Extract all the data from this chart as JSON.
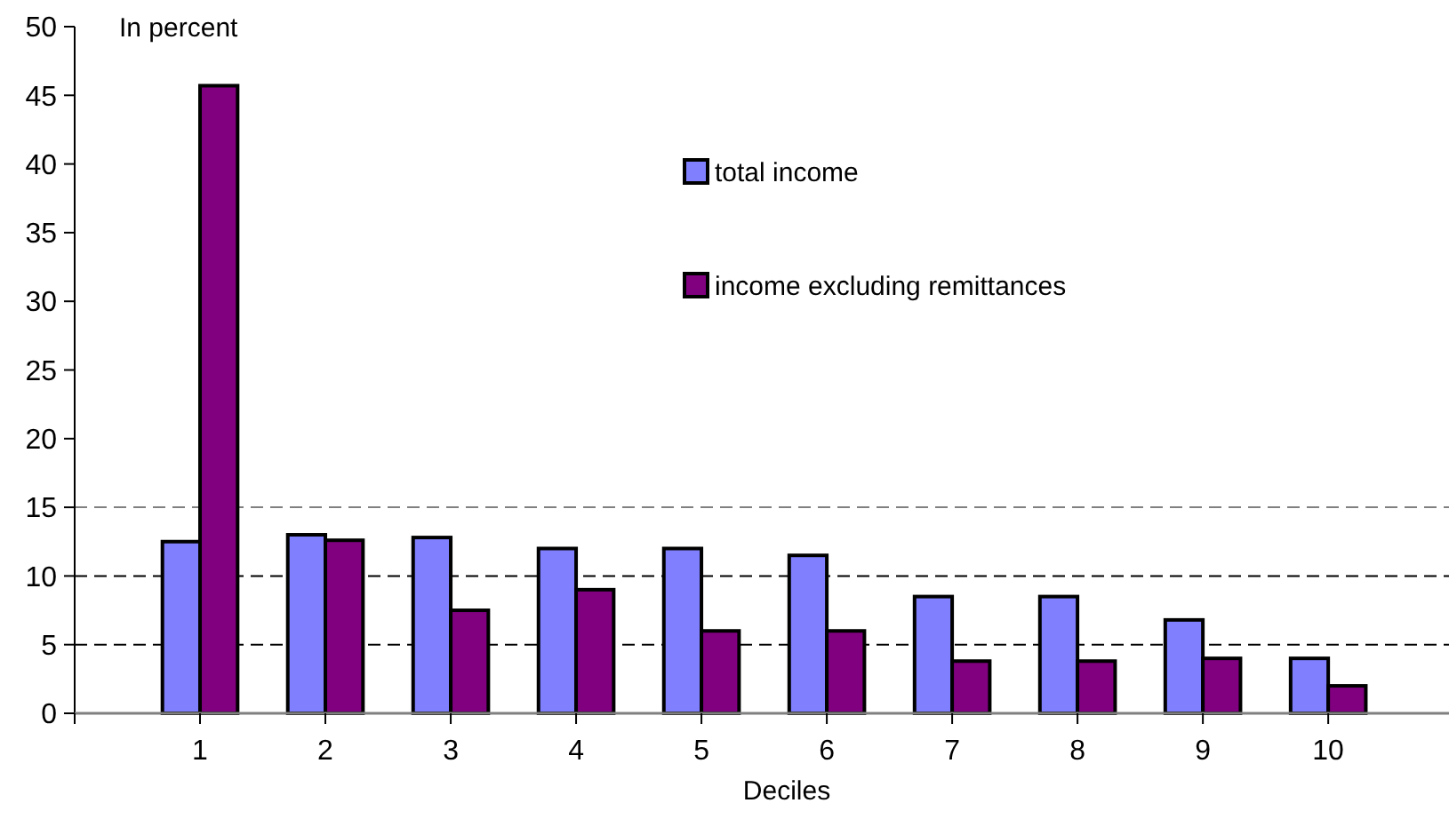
{
  "chart_data": {
    "type": "bar",
    "xlabel": "Deciles",
    "ylabel": "In percent",
    "categories": [
      "1",
      "2",
      "3",
      "4",
      "5",
      "6",
      "7",
      "8",
      "9",
      "10"
    ],
    "series": [
      {
        "name": "total income",
        "color": "#8080ff",
        "values": [
          12.5,
          13,
          12.8,
          12,
          12,
          11.5,
          8.5,
          8.5,
          6.8,
          4
        ]
      },
      {
        "name": "income excluding remittances",
        "color": "#800080",
        "values": [
          45.7,
          12.6,
          7.5,
          9,
          6,
          6,
          3.8,
          3.8,
          4,
          2
        ]
      }
    ],
    "ylim": [
      0,
      50
    ],
    "yticks": [
      0,
      5,
      10,
      15,
      20,
      25,
      30,
      35,
      40,
      45,
      50
    ],
    "ref_lines": [
      {
        "axis": "y",
        "value": 5,
        "color": "#000000",
        "line_style": "dashed"
      },
      {
        "axis": "y",
        "value": 10,
        "color": "#000000",
        "line_style": "dashed"
      },
      {
        "axis": "y",
        "value": 15,
        "color": "#808080",
        "line_style": "dashed"
      }
    ],
    "legend": "top right",
    "grid": false
  }
}
